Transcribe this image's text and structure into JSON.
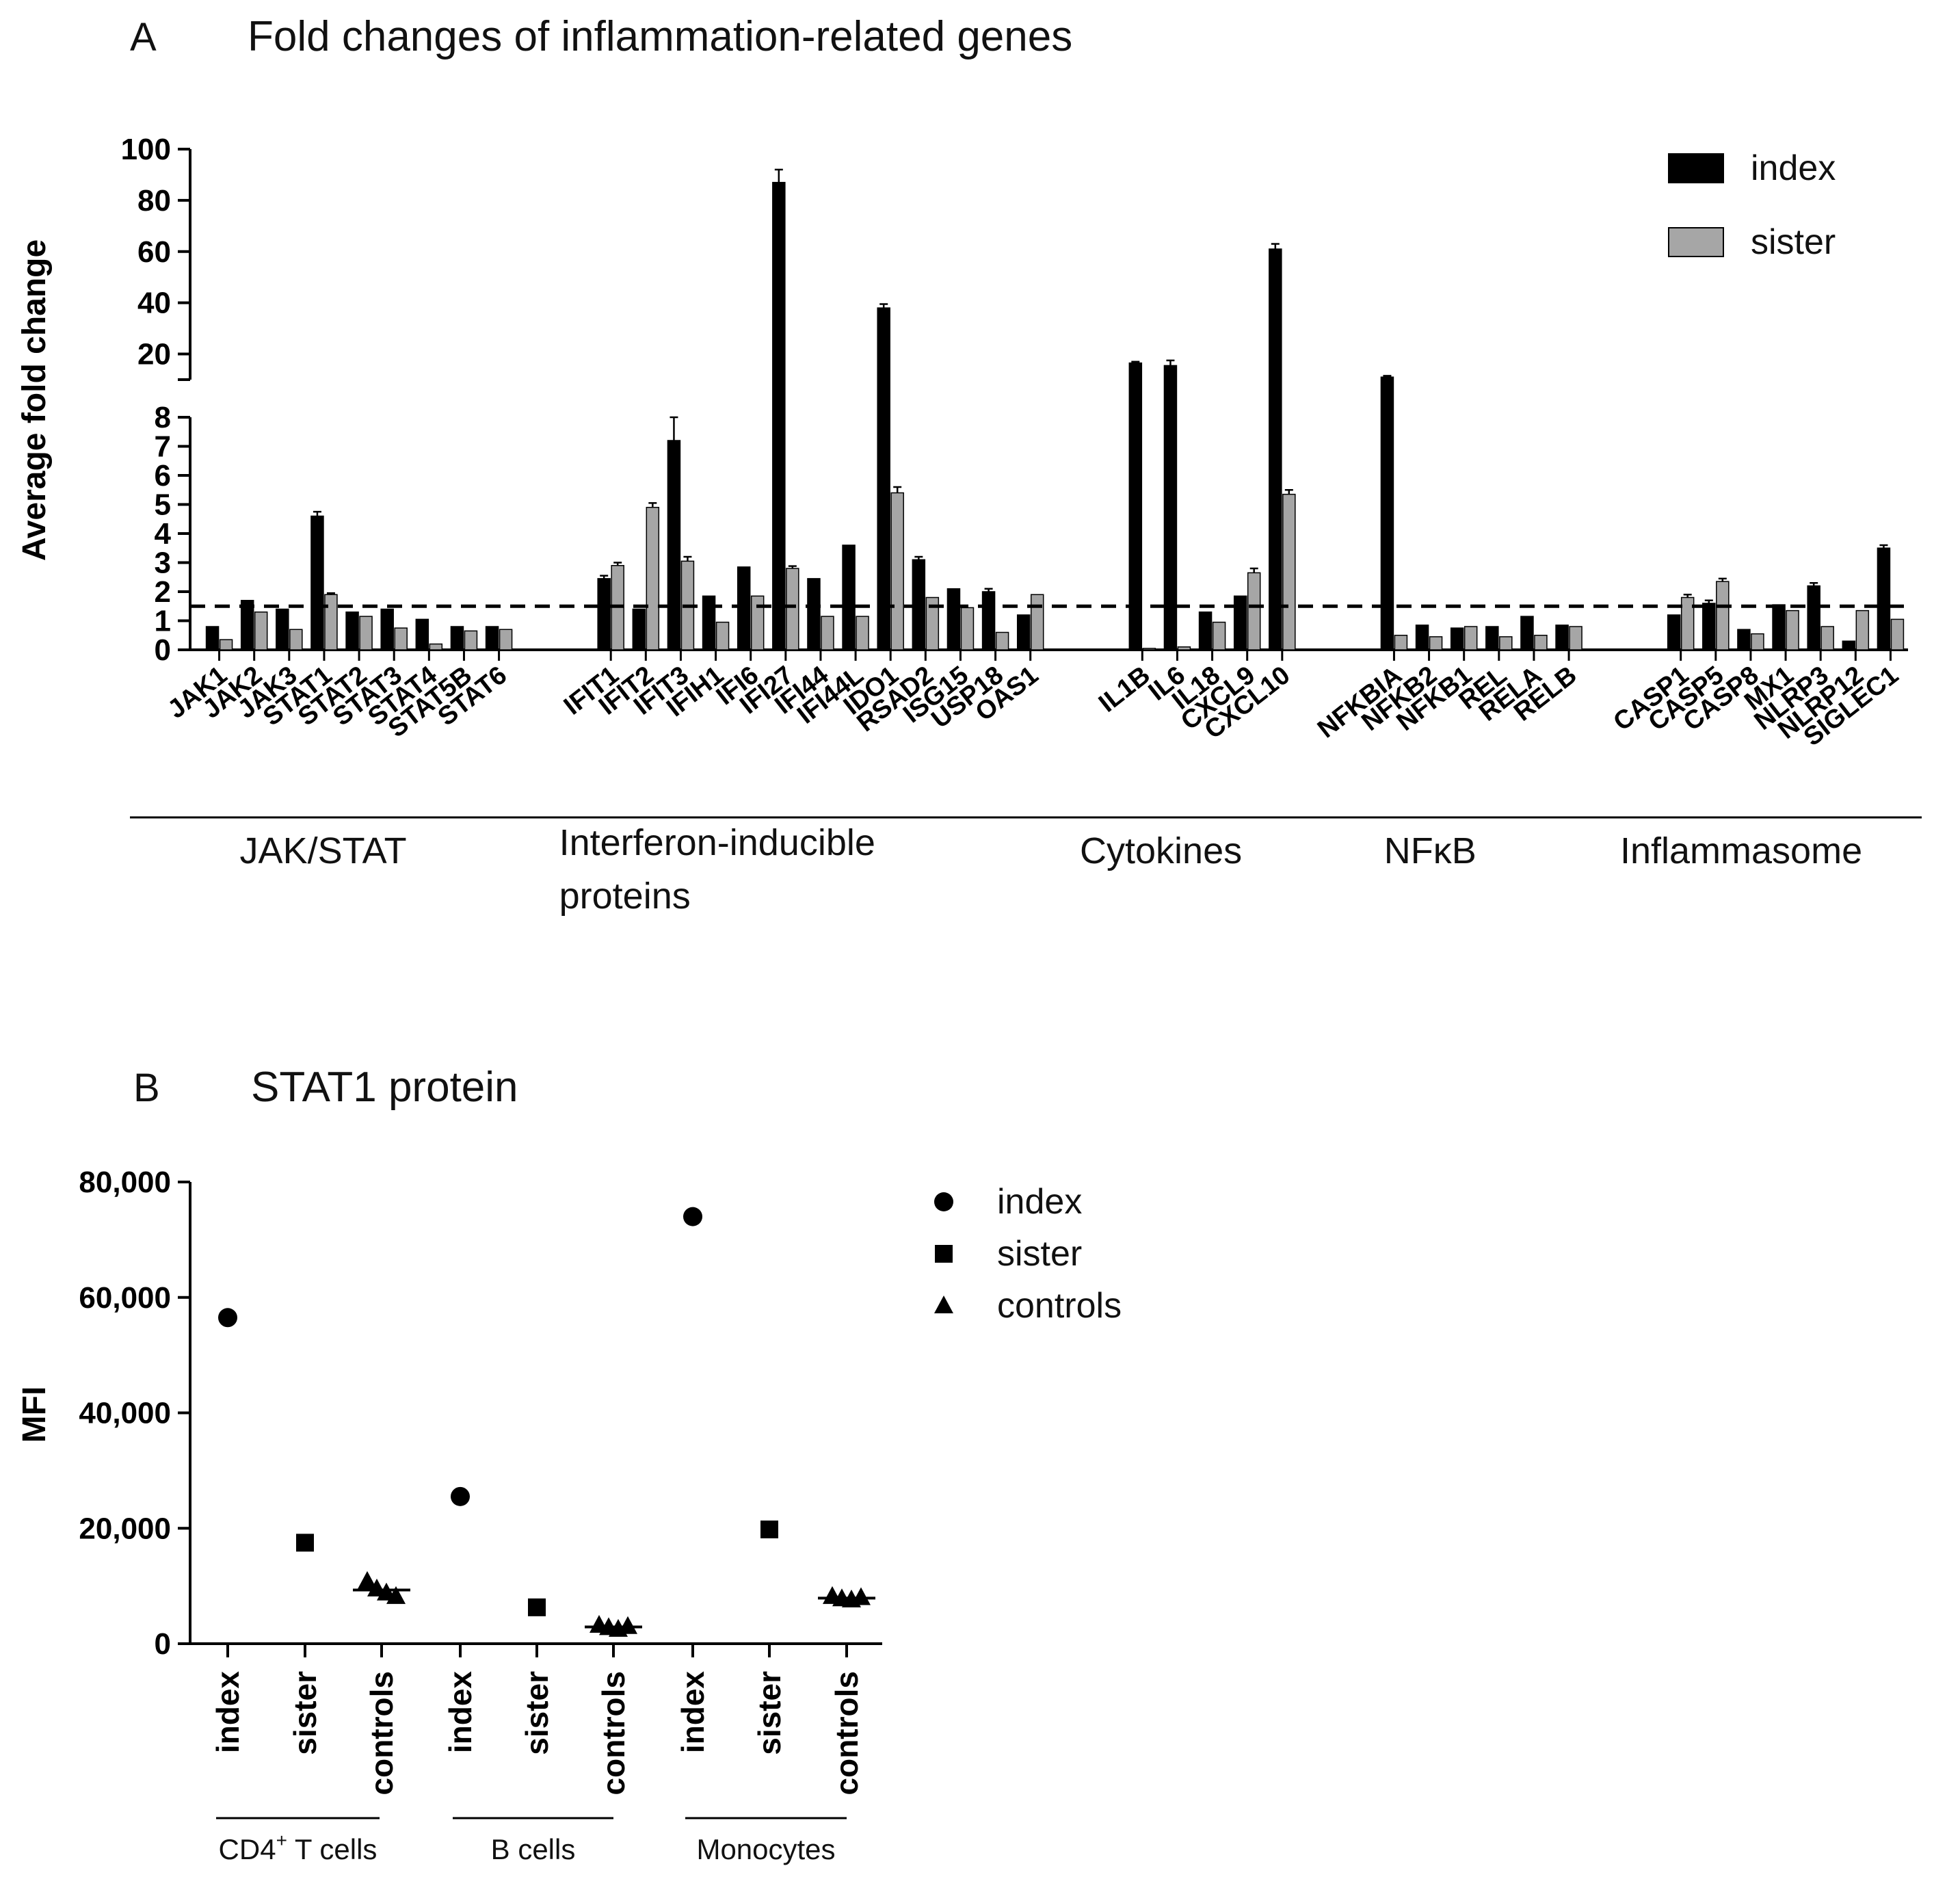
{
  "colors": {
    "index_bar": "#000000",
    "sister_bar": "#a6a6a6",
    "axis": "#000000"
  },
  "chart_data": [
    {
      "id": "A",
      "type": "bar",
      "panel_letter": "A",
      "title": "Fold changes of inflammation-related genes",
      "ylabel": "Average fold change",
      "y_broken_axis": {
        "lower_range": [
          0,
          8
        ],
        "upper_range": [
          10,
          100
        ]
      },
      "lower_ticks": [
        "0",
        "1",
        "2",
        "3",
        "4",
        "5",
        "6",
        "7",
        "8"
      ],
      "upper_ticks": [
        "20",
        "40",
        "60",
        "80",
        "100"
      ],
      "reference_line": 1.5,
      "legend": [
        {
          "name": "index",
          "color": "#000000"
        },
        {
          "name": "sister",
          "color": "#a6a6a6"
        }
      ],
      "groups": [
        {
          "name": "JAK/STAT",
          "genes": [
            "JAK1",
            "JAK2",
            "JAK3",
            "STAT1",
            "STAT2",
            "STAT3",
            "STAT4",
            "STAT5B",
            "STAT6"
          ]
        },
        {
          "name": "Interferon-inducible proteins",
          "label_lines": [
            "Interferon-inducible",
            "proteins"
          ],
          "genes": [
            "IFIT1",
            "IFIT2",
            "IFIT3",
            "IFIH1",
            "IFI6",
            "IFI27",
            "IFI44",
            "IFI44L",
            "IDO1",
            "RSAD2",
            "ISG15",
            "USP18",
            "OAS1"
          ]
        },
        {
          "name": "Cytokines",
          "genes": [
            "IL1B",
            "IL6",
            "IL18",
            "CXCL9",
            "CXCL10"
          ]
        },
        {
          "name": "NFκB",
          "genes": [
            "NFKBIA",
            "NFKB2",
            "NFKB1",
            "REL",
            "RELA",
            "RELB"
          ]
        },
        {
          "name": "Inflammasome",
          "genes": [
            "CASP1",
            "CASP5",
            "CASP8",
            "MX1",
            "NLRP3",
            "NLRP12",
            "SIGLEC1"
          ]
        }
      ],
      "series": [
        {
          "name": "index",
          "values": [
            0.8,
            1.7,
            1.4,
            4.6,
            1.3,
            1.4,
            1.05,
            0.8,
            0.8,
            2.45,
            1.4,
            7.2,
            1.85,
            2.85,
            87,
            2.45,
            3.6,
            38,
            3.1,
            2.1,
            2.0,
            1.2,
            16.5,
            15.5,
            1.3,
            1.85,
            61,
            11,
            0.85,
            0.75,
            0.8,
            1.15,
            0.85,
            1.2,
            1.6,
            0.7,
            1.55,
            2.2,
            0.3,
            3.5
          ],
          "errors": [
            0,
            0,
            0,
            0.15,
            0,
            0,
            0,
            0,
            0,
            0.1,
            0,
            0.8,
            0,
            0,
            5,
            0,
            0,
            1.5,
            0.1,
            0,
            0.1,
            0,
            0.5,
            2,
            0,
            0,
            2,
            0.5,
            0,
            0,
            0,
            0,
            0,
            0,
            0.1,
            0,
            0,
            0.1,
            0,
            0.1
          ]
        },
        {
          "name": "sister",
          "values": [
            0.35,
            1.3,
            0.7,
            1.9,
            1.15,
            0.75,
            0.2,
            0.65,
            0.7,
            2.9,
            4.9,
            3.05,
            0.95,
            1.85,
            2.8,
            1.15,
            1.15,
            5.4,
            1.8,
            1.45,
            0.6,
            1.9,
            0.05,
            0.1,
            0.95,
            2.65,
            5.35,
            0.5,
            0.45,
            0.8,
            0.45,
            0.5,
            0.8,
            1.8,
            2.35,
            0.55,
            1.35,
            0.8,
            1.35,
            1.05
          ],
          "errors": [
            0,
            0,
            0,
            0.05,
            0,
            0,
            0,
            0,
            0,
            0.1,
            0.15,
            0.15,
            0,
            0,
            0.08,
            0,
            0,
            0.2,
            0,
            0,
            0,
            0,
            0,
            0,
            0,
            0.15,
            0.15,
            0,
            0,
            0,
            0,
            0,
            0,
            0.1,
            0.1,
            0,
            0,
            0,
            0,
            0
          ]
        }
      ]
    },
    {
      "id": "B",
      "type": "scatter",
      "panel_letter": "B",
      "title": "STAT1 protein",
      "ylabel": "MFI",
      "ylim": [
        0,
        80000
      ],
      "yticks": [
        "0",
        "20,000",
        "40,000",
        "60,000",
        "80,000"
      ],
      "legend": [
        {
          "name": "index",
          "marker": "circle"
        },
        {
          "name": "sister",
          "marker": "square"
        },
        {
          "name": "controls",
          "marker": "triangle"
        }
      ],
      "categories": [
        "index",
        "sister",
        "controls",
        "index",
        "sister",
        "controls",
        "index",
        "sister",
        "controls"
      ],
      "cell_groups": [
        {
          "name_parts": [
            "CD4",
            "+",
            " T cells"
          ]
        },
        {
          "name_parts": [
            "B cells",
            "",
            ""
          ]
        },
        {
          "name_parts": [
            "Monocytes",
            "",
            ""
          ]
        }
      ],
      "points": [
        {
          "cat": 0,
          "marker": "circle",
          "values": [
            56500
          ]
        },
        {
          "cat": 1,
          "marker": "square",
          "values": [
            17500
          ]
        },
        {
          "cat": 2,
          "marker": "triangle",
          "values": [
            10800,
            9500,
            8800,
            8200
          ],
          "mean": 9300
        },
        {
          "cat": 3,
          "marker": "circle",
          "values": [
            25500
          ]
        },
        {
          "cat": 4,
          "marker": "square",
          "values": [
            6300
          ]
        },
        {
          "cat": 5,
          "marker": "triangle",
          "values": [
            3200,
            2800,
            2500,
            3000
          ],
          "mean": 2900
        },
        {
          "cat": 6,
          "marker": "circle",
          "values": [
            74000
          ]
        },
        {
          "cat": 7,
          "marker": "square",
          "values": [
            19800
          ]
        },
        {
          "cat": 8,
          "marker": "triangle",
          "values": [
            8200,
            7800,
            7600,
            8000
          ],
          "mean": 7900
        }
      ]
    }
  ]
}
